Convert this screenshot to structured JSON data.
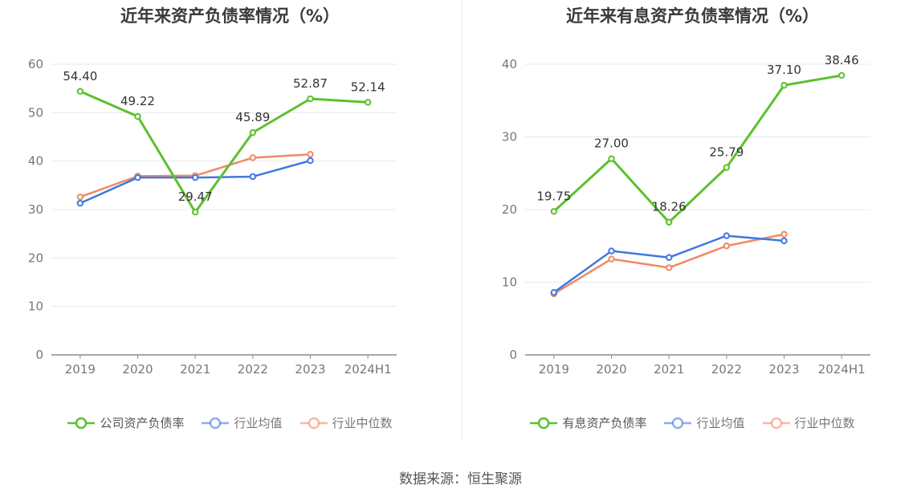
{
  "source_text": "数据来源：恒生聚源",
  "chart_data": [
    {
      "type": "line",
      "title": "近年来资产负债率情况（%）",
      "categories": [
        "2019",
        "2020",
        "2021",
        "2022",
        "2023",
        "2024H1"
      ],
      "ylim": [
        0,
        60
      ],
      "yticks": [
        0,
        10,
        20,
        30,
        40,
        50,
        60
      ],
      "grid": true,
      "legend_position": "bottom",
      "series": [
        {
          "name": "公司资产负债率",
          "color": "#5cc12e",
          "values": [
            54.4,
            49.22,
            29.47,
            45.89,
            52.87,
            52.14
          ],
          "labels": [
            "54.40",
            "49.22",
            "29.47",
            "45.89",
            "52.87",
            "52.14"
          ]
        },
        {
          "name": "行业均值",
          "color": "#3f78e0",
          "values": [
            31.3,
            36.6,
            36.6,
            36.8,
            40.1,
            null
          ]
        },
        {
          "name": "行业中位数",
          "color": "#f08a62",
          "values": [
            32.6,
            36.9,
            37.0,
            40.7,
            41.4,
            null
          ]
        }
      ]
    },
    {
      "type": "line",
      "title": "近年来有息资产负债率情况（%）",
      "categories": [
        "2019",
        "2020",
        "2021",
        "2022",
        "2023",
        "2024H1"
      ],
      "ylim": [
        0,
        40
      ],
      "yticks": [
        0,
        10,
        20,
        30,
        40
      ],
      "grid": true,
      "legend_position": "bottom",
      "series": [
        {
          "name": "有息资产负债率",
          "color": "#5cc12e",
          "values": [
            19.75,
            27.0,
            18.26,
            25.79,
            37.1,
            38.46
          ],
          "labels": [
            "19.75",
            "27.00",
            "18.26",
            "25.79",
            "37.10",
            "38.46"
          ]
        },
        {
          "name": "行业均值",
          "color": "#3f78e0",
          "values": [
            8.6,
            14.3,
            13.4,
            16.4,
            15.7,
            null
          ]
        },
        {
          "name": "行业中位数",
          "color": "#f08a62",
          "values": [
            8.4,
            13.2,
            12.0,
            15.0,
            16.6,
            null
          ]
        }
      ]
    }
  ]
}
